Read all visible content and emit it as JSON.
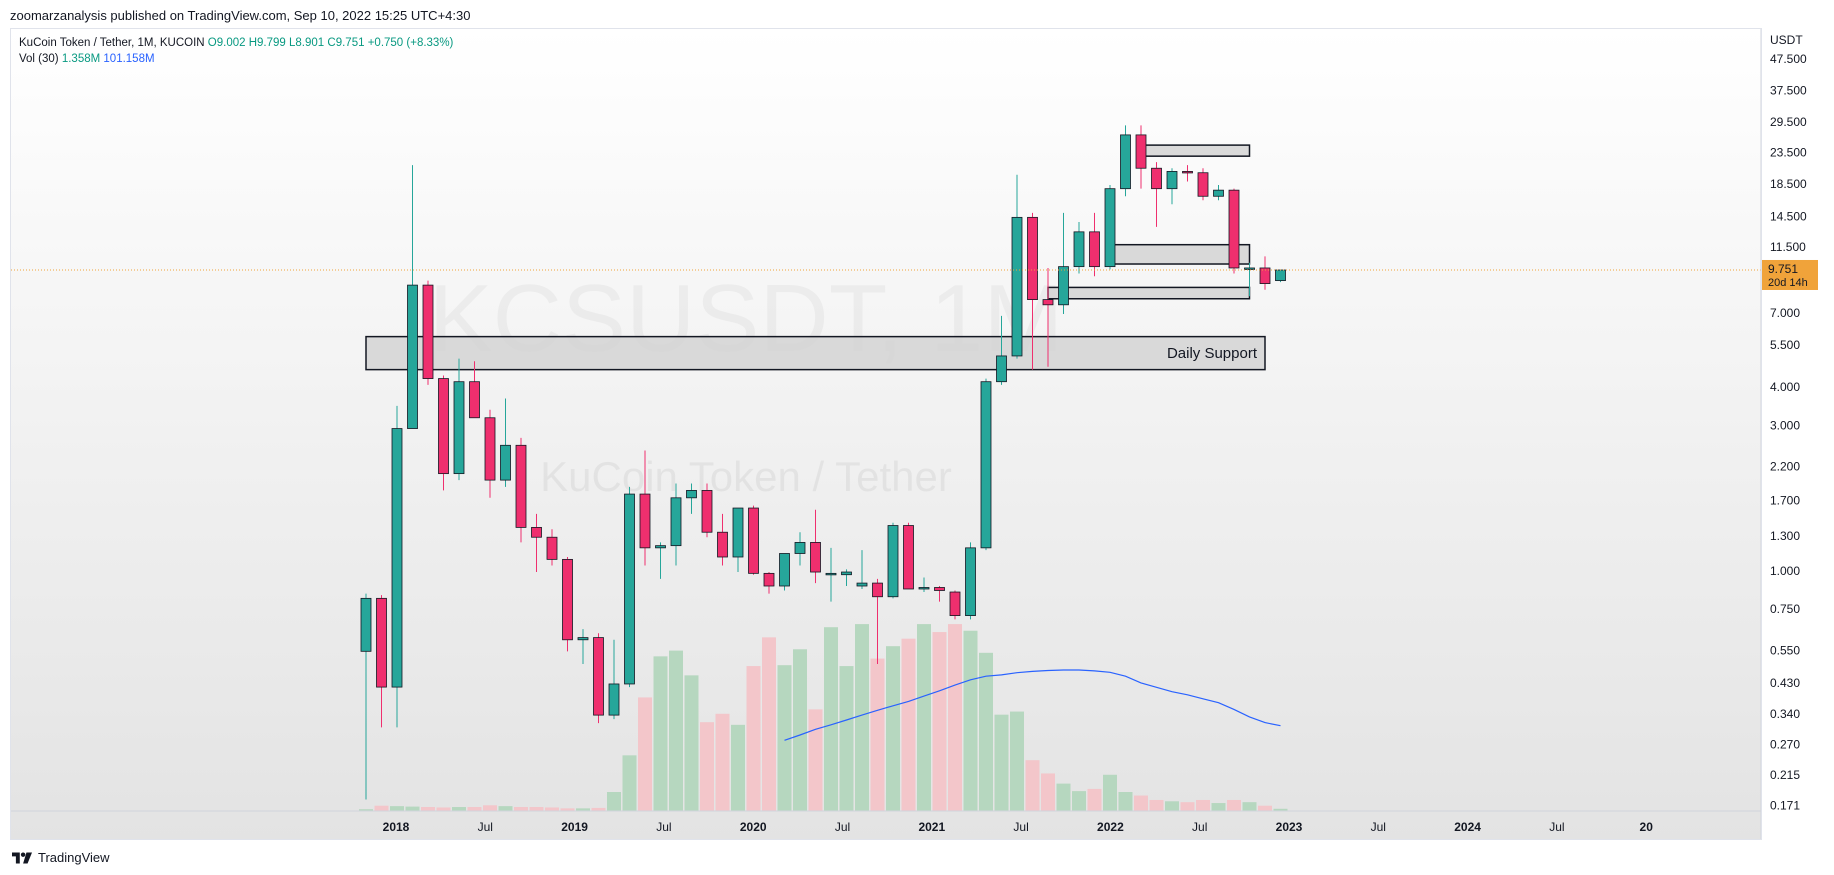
{
  "header": {
    "publisher_text": "zoomarzanalysis published on TradingView.com, Sep 10, 2022 15:25 UTC+4:30"
  },
  "legend": {
    "symbol": "KuCoin Token / Tether, 1M, KUCOIN",
    "open": "O9.002",
    "high": "H9.799",
    "low": "L8.901",
    "close": "C9.751",
    "change": "+0.750 (+8.33%)",
    "vol_label": "Vol (30)",
    "vol_value": "1.358M",
    "vol_ma_value": "101.158M"
  },
  "watermark": {
    "ticker": "KCSUSDT, 1M",
    "name": "KuCoin Token / Tether"
  },
  "footer": {
    "brand": "TradingView"
  },
  "colors": {
    "up": "#26a69a",
    "down": "#ef2f6e",
    "vol_up": "#b6d7bf",
    "vol_down": "#f3c6ca",
    "ma": "#2962ff",
    "price_line": "#f0a33a"
  },
  "chart_data": {
    "type": "candlestick",
    "y_scale": "log",
    "y_currency": "USDT",
    "ylim": [
      0.165,
      60
    ],
    "y_ticks": [
      "47.500",
      "37.500",
      "29.500",
      "23.500",
      "18.500",
      "14.500",
      "11.500",
      "9.000",
      "7.000",
      "5.500",
      "4.000",
      "3.000",
      "2.200",
      "1.700",
      "1.300",
      "1.000",
      "0.750",
      "0.550",
      "0.430",
      "0.340",
      "0.270",
      "0.215",
      "0.171"
    ],
    "x_labels": [
      "2018",
      "Jul",
      "2019",
      "Jul",
      "2020",
      "Jul",
      "2021",
      "Jul",
      "2022",
      "Jul",
      "2023",
      "Jul",
      "2024",
      "Jul",
      "20"
    ],
    "last_price": {
      "value": 9.751,
      "label": "9.751",
      "countdown": "20d 14h"
    },
    "candles": [
      {
        "o": 0.55,
        "h": 0.85,
        "l": 0.18,
        "c": 0.82
      },
      {
        "o": 0.82,
        "h": 0.84,
        "l": 0.31,
        "c": 0.42
      },
      {
        "o": 0.42,
        "h": 3.5,
        "l": 0.31,
        "c": 2.95
      },
      {
        "o": 2.95,
        "h": 21.5,
        "l": 3.2,
        "c": 8.7
      },
      {
        "o": 8.7,
        "h": 9.0,
        "l": 4.1,
        "c": 4.3
      },
      {
        "o": 4.3,
        "h": 4.4,
        "l": 1.85,
        "c": 2.1
      },
      {
        "o": 2.1,
        "h": 5.0,
        "l": 2.0,
        "c": 4.2
      },
      {
        "o": 4.2,
        "h": 4.9,
        "l": 3.2,
        "c": 3.2
      },
      {
        "o": 3.2,
        "h": 3.4,
        "l": 1.75,
        "c": 2.0
      },
      {
        "o": 2.0,
        "h": 3.7,
        "l": 1.9,
        "c": 2.6
      },
      {
        "o": 2.6,
        "h": 2.75,
        "l": 1.25,
        "c": 1.4
      },
      {
        "o": 1.4,
        "h": 1.55,
        "l": 1.0,
        "c": 1.3
      },
      {
        "o": 1.3,
        "h": 1.38,
        "l": 1.05,
        "c": 1.1
      },
      {
        "o": 1.1,
        "h": 1.12,
        "l": 0.55,
        "c": 0.6
      },
      {
        "o": 0.6,
        "h": 0.65,
        "l": 0.5,
        "c": 0.61
      },
      {
        "o": 0.61,
        "h": 0.63,
        "l": 0.32,
        "c": 0.34
      },
      {
        "o": 0.34,
        "h": 0.6,
        "l": 0.33,
        "c": 0.43
      },
      {
        "o": 0.43,
        "h": 1.9,
        "l": 0.42,
        "c": 1.8
      },
      {
        "o": 1.8,
        "h": 2.5,
        "l": 1.05,
        "c": 1.2
      },
      {
        "o": 1.2,
        "h": 1.25,
        "l": 0.95,
        "c": 1.22
      },
      {
        "o": 1.22,
        "h": 1.95,
        "l": 1.05,
        "c": 1.75
      },
      {
        "o": 1.75,
        "h": 1.95,
        "l": 1.55,
        "c": 1.85
      },
      {
        "o": 1.85,
        "h": 1.95,
        "l": 1.3,
        "c": 1.35
      },
      {
        "o": 1.35,
        "h": 1.55,
        "l": 1.05,
        "c": 1.12
      },
      {
        "o": 1.12,
        "h": 1.62,
        "l": 1.0,
        "c": 1.62
      },
      {
        "o": 1.62,
        "h": 1.65,
        "l": 0.98,
        "c": 0.99
      },
      {
        "o": 0.99,
        "h": 1.0,
        "l": 0.85,
        "c": 0.9
      },
      {
        "o": 0.9,
        "h": 1.15,
        "l": 0.87,
        "c": 1.15
      },
      {
        "o": 1.15,
        "h": 1.35,
        "l": 1.05,
        "c": 1.25
      },
      {
        "o": 1.25,
        "h": 1.6,
        "l": 0.92,
        "c": 1.0
      },
      {
        "o": 0.98,
        "h": 1.2,
        "l": 0.8,
        "c": 0.99
      },
      {
        "o": 0.98,
        "h": 1.02,
        "l": 0.9,
        "c": 1.0
      },
      {
        "o": 0.9,
        "h": 1.18,
        "l": 0.88,
        "c": 0.92
      },
      {
        "o": 0.92,
        "h": 0.95,
        "l": 0.5,
        "c": 0.83
      },
      {
        "o": 0.83,
        "h": 1.45,
        "l": 0.82,
        "c": 1.42
      },
      {
        "o": 1.42,
        "h": 1.45,
        "l": 0.88,
        "c": 0.88
      },
      {
        "o": 0.88,
        "h": 0.96,
        "l": 0.86,
        "c": 0.89
      },
      {
        "o": 0.89,
        "h": 0.9,
        "l": 0.8,
        "c": 0.87
      },
      {
        "o": 0.86,
        "h": 0.87,
        "l": 0.7,
        "c": 0.72
      },
      {
        "o": 0.72,
        "h": 1.25,
        "l": 0.7,
        "c": 1.2
      },
      {
        "o": 1.2,
        "h": 4.3,
        "l": 1.18,
        "c": 4.2
      },
      {
        "o": 4.2,
        "h": 6.9,
        "l": 4.1,
        "c": 5.1
      },
      {
        "o": 5.1,
        "h": 20.0,
        "l": 5.0,
        "c": 14.5
      },
      {
        "o": 14.5,
        "h": 15.0,
        "l": 4.6,
        "c": 7.8
      },
      {
        "o": 7.8,
        "h": 9.9,
        "l": 4.7,
        "c": 7.5
      },
      {
        "o": 7.5,
        "h": 15.0,
        "l": 7.0,
        "c": 10.0
      },
      {
        "o": 10.0,
        "h": 14.0,
        "l": 9.5,
        "c": 13.0
      },
      {
        "o": 13.0,
        "h": 15.0,
        "l": 9.3,
        "c": 10.0
      },
      {
        "o": 10.0,
        "h": 18.5,
        "l": 9.8,
        "c": 18.0
      },
      {
        "o": 18.0,
        "h": 29.0,
        "l": 17.0,
        "c": 27.0
      },
      {
        "o": 27.0,
        "h": 29.0,
        "l": 18.0,
        "c": 21.0
      },
      {
        "o": 21.0,
        "h": 22.0,
        "l": 13.5,
        "c": 18.0
      },
      {
        "o": 18.0,
        "h": 21.0,
        "l": 16.0,
        "c": 20.5
      },
      {
        "o": 20.5,
        "h": 21.5,
        "l": 19.0,
        "c": 20.3
      },
      {
        "o": 20.3,
        "h": 21.0,
        "l": 16.5,
        "c": 17.0
      },
      {
        "o": 17.0,
        "h": 18.5,
        "l": 16.5,
        "c": 17.8
      },
      {
        "o": 17.8,
        "h": 18.0,
        "l": 9.5,
        "c": 9.9
      },
      {
        "o": 9.9,
        "h": 10.3,
        "l": 8.0,
        "c": 9.9
      },
      {
        "o": 9.9,
        "h": 10.8,
        "l": 8.4,
        "c": 8.8
      },
      {
        "o": 9.0,
        "h": 9.8,
        "l": 8.9,
        "c": 9.75
      }
    ],
    "volume": [
      0.4,
      1.2,
      1.1,
      1.0,
      0.9,
      0.8,
      0.9,
      0.9,
      1.3,
      1.1,
      0.9,
      0.9,
      0.8,
      0.6,
      0.6,
      0.7,
      4.3,
      12.6,
      25.7,
      35.0,
      36.3,
      30.7,
      20.1,
      22.0,
      19.5,
      32.8,
      39.3,
      33.0,
      36.6,
      23.0,
      41.6,
      32.8,
      42.3,
      34.5,
      37.3,
      39.0,
      42.3,
      40.5,
      42.3,
      40.8,
      35.8,
      21.8,
      22.5,
      11.5,
      8.5,
      6.2,
      4.5,
      5.0,
      8.2,
      4.3,
      3.5,
      2.5,
      2.2,
      2.0,
      2.5,
      1.8,
      2.5,
      2.0,
      1.2,
      0.5
    ],
    "volume_ma": [
      null,
      null,
      null,
      null,
      null,
      null,
      null,
      null,
      null,
      null,
      null,
      null,
      null,
      null,
      null,
      null,
      null,
      null,
      null,
      null,
      null,
      null,
      null,
      null,
      null,
      null,
      null,
      16.0,
      17.2,
      18.5,
      19.5,
      20.6,
      21.7,
      22.8,
      23.8,
      24.8,
      26.0,
      27.2,
      28.5,
      29.7,
      30.5,
      30.8,
      31.3,
      31.6,
      31.8,
      31.9,
      31.9,
      31.7,
      31.4,
      30.5,
      29.0,
      28.0,
      27.0,
      26.3,
      25.4,
      24.5,
      23.0,
      21.3,
      20.0,
      19.3
    ],
    "annotations": [
      {
        "type": "box",
        "label": "Daily Support",
        "from_index": 0,
        "to_index": 58,
        "low": 4.6,
        "high": 5.9
      },
      {
        "type": "box",
        "label": "",
        "from_index": 44,
        "to_index": 57,
        "low": 7.85,
        "high": 8.55
      },
      {
        "type": "box",
        "label": "",
        "from_index": 48,
        "to_index": 57,
        "low": 10.2,
        "high": 11.8
      },
      {
        "type": "box",
        "label": "",
        "from_index": 50,
        "to_index": 57,
        "low": 23.0,
        "high": 25.0
      }
    ]
  }
}
